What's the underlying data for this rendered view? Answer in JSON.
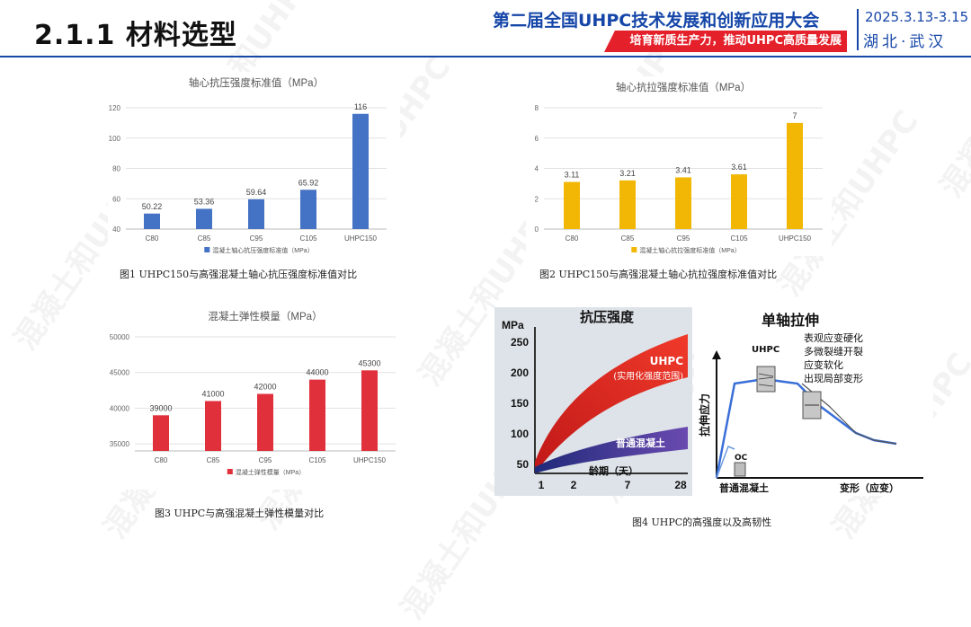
{
  "header": {
    "title": "2.1.1 材料选型",
    "conference": "第二届全国UHPC技术发展和创新应用大会",
    "slogan": "培育新质生产力，推动UHPC高质量发展",
    "date": "2025.3.13-3.15",
    "location": "湖北·武汉",
    "accent_color": "#1546a8",
    "slogan_color": "#e4202a"
  },
  "watermark": "混凝土和UHPC",
  "charts": {
    "compressive": {
      "chart_data": {
        "type": "bar",
        "title": "轴心抗压强度标准值（MPa）",
        "categories": [
          "C80",
          "C85",
          "C95",
          "C105",
          "UHPC150"
        ],
        "series": [
          {
            "name": "混凝土轴心抗压强度标准值（MPa）",
            "values": [
              50.22,
              53.36,
              59.64,
              65.92,
              116
            ]
          }
        ],
        "data_labels": [
          "50.22",
          "53.36",
          "59.64",
          "65.92",
          "116"
        ],
        "yticks": [
          "40",
          "60",
          "80",
          "100",
          "120"
        ],
        "ylim": [
          40,
          120
        ],
        "color": "#4472c4"
      },
      "caption": "图1 UHPC150与高强混凝土轴心抗压强度标准值对比"
    },
    "tensile": {
      "chart_data": {
        "type": "bar",
        "title": "轴心抗拉强度标准值（MPa）",
        "categories": [
          "C80",
          "C85",
          "C95",
          "C105",
          "UHPC150"
        ],
        "series": [
          {
            "name": "混凝土轴心抗拉强度标准值（MPa）",
            "values": [
              3.11,
              3.21,
              3.41,
              3.61,
              7
            ]
          }
        ],
        "data_labels": [
          "3.11",
          "3.21",
          "3.41",
          "3.61",
          "7"
        ],
        "yticks": [
          "0",
          "2",
          "4",
          "6",
          "8"
        ],
        "ylim": [
          0,
          8
        ],
        "color": "#f2b705"
      },
      "caption": "图2 UHPC150与高强混凝土轴心抗拉强度标准值对比"
    },
    "modulus": {
      "chart_data": {
        "type": "bar",
        "title": "混凝土弹性模量（MPa）",
        "categories": [
          "C80",
          "C85",
          "C95",
          "C105",
          "UHPC150"
        ],
        "series": [
          {
            "name": "混凝土弹性模量（MPa）",
            "values": [
              39000,
              41000,
              42000,
              44000,
              45300
            ]
          }
        ],
        "data_labels": [
          "39000",
          "41000",
          "42000",
          "44000",
          "45300"
        ],
        "yticks": [
          "35000",
          "40000",
          "45000",
          "50000"
        ],
        "ylim": [
          34000,
          50000
        ],
        "color": "#e0303c"
      },
      "caption": "图3 UHPC与高强混凝土弹性模量对比"
    }
  },
  "figure4": {
    "left": {
      "title": "抗压强度",
      "yunit": "MPa",
      "yticks": [
        "50",
        "100",
        "150",
        "200",
        "250"
      ],
      "xticks": [
        "1",
        "2",
        "7",
        "28"
      ],
      "xlabel": "龄期（天）",
      "uhpc_label": "UHPC",
      "uhpc_sub": "(实用化强度范围)",
      "normal_label": "普通混凝土"
    },
    "right": {
      "title": "单轴拉伸",
      "ylabel": "拉伸应力",
      "xlabel": "变形（应变）",
      "normal_axis_label": "普通混凝土",
      "uhpc_label": "UHPC",
      "oc_label": "OC",
      "notes": [
        "表观应变硬化",
        "多微裂缝开裂",
        "应变软化",
        "出现局部变形"
      ]
    },
    "caption": "图4 UHPC的高强度以及高韧性"
  }
}
